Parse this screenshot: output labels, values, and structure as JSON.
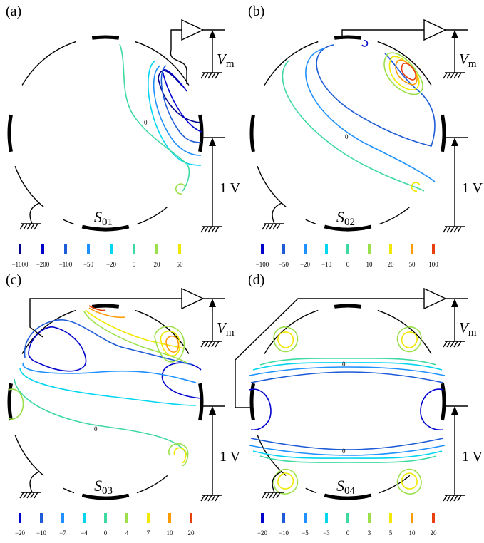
{
  "panels": [
    {
      "id": "a",
      "label": "(a)",
      "vm_var": "V",
      "vm_sub": "m",
      "voltage": "1 V",
      "electrode_var": "S",
      "electrode_sub": "01",
      "zero_label": "0",
      "legend": [
        {
          "label": "−1000",
          "color": "#00008b"
        },
        {
          "label": "−200",
          "color": "#0000cd"
        },
        {
          "label": "−100",
          "color": "#1e5bd6"
        },
        {
          "label": "−50",
          "color": "#1e90ff"
        },
        {
          "label": "−20",
          "color": "#00d5f0"
        },
        {
          "label": "0",
          "color": "#3ed9a0"
        },
        {
          "label": "20",
          "color": "#9be04a"
        },
        {
          "label": "50",
          "color": "#f0e800"
        }
      ]
    },
    {
      "id": "b",
      "label": "(b)",
      "vm_var": "V",
      "vm_sub": "m",
      "voltage": "1 V",
      "electrode_var": "S",
      "electrode_sub": "02",
      "zero_label": "0",
      "legend": [
        {
          "label": "−100",
          "color": "#0000cd"
        },
        {
          "label": "−50",
          "color": "#1e5bd6"
        },
        {
          "label": "−20",
          "color": "#1e90ff"
        },
        {
          "label": "−10",
          "color": "#00d5f0"
        },
        {
          "label": "0",
          "color": "#3ed9a0"
        },
        {
          "label": "10",
          "color": "#9be04a"
        },
        {
          "label": "20",
          "color": "#f0e800"
        },
        {
          "label": "50",
          "color": "#ff9a00"
        },
        {
          "label": "100",
          "color": "#e8400c"
        }
      ]
    },
    {
      "id": "c",
      "label": "(c)",
      "vm_var": "V",
      "vm_sub": "m",
      "voltage": "1 V",
      "electrode_var": "S",
      "electrode_sub": "03",
      "zero_label": "0",
      "legend": [
        {
          "label": "−20",
          "color": "#0000cd"
        },
        {
          "label": "−10",
          "color": "#1e5bd6"
        },
        {
          "label": "−7",
          "color": "#1e90ff"
        },
        {
          "label": "−4",
          "color": "#00d5f0"
        },
        {
          "label": "0",
          "color": "#3ed9a0"
        },
        {
          "label": "4",
          "color": "#9be04a"
        },
        {
          "label": "7",
          "color": "#f0e800"
        },
        {
          "label": "10",
          "color": "#ff9a00"
        },
        {
          "label": "20",
          "color": "#e8400c"
        }
      ]
    },
    {
      "id": "d",
      "label": "(d)",
      "vm_var": "V",
      "vm_sub": "m",
      "voltage": "1 V",
      "electrode_var": "S",
      "electrode_sub": "04",
      "zero_label": "0",
      "legend": [
        {
          "label": "−20",
          "color": "#0000cd"
        },
        {
          "label": "−10",
          "color": "#1e5bd6"
        },
        {
          "label": "−5",
          "color": "#1e90ff"
        },
        {
          "label": "−3",
          "color": "#00d5f0"
        },
        {
          "label": "0",
          "color": "#3ed9a0"
        },
        {
          "label": "3",
          "color": "#9be04a"
        },
        {
          "label": "5",
          "color": "#f0e800"
        },
        {
          "label": "10",
          "color": "#ff9a00"
        },
        {
          "label": "20",
          "color": "#e8400c"
        }
      ]
    }
  ]
}
